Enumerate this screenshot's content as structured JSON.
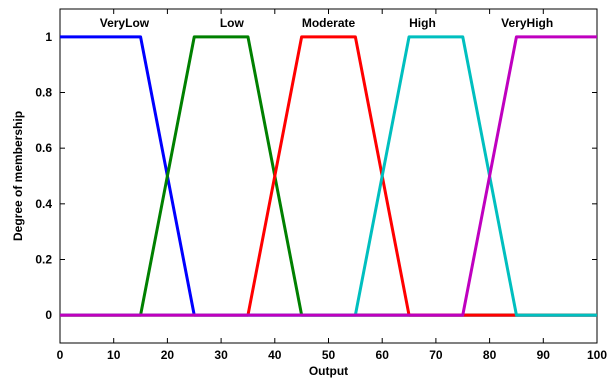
{
  "chart_data": {
    "type": "line",
    "title": "",
    "xlabel": "Output",
    "ylabel": "Degree of membership",
    "xlim": [
      0,
      100
    ],
    "ylim": [
      -0.1,
      1.1
    ],
    "xticks": [
      0,
      10,
      20,
      30,
      40,
      50,
      60,
      70,
      80,
      90,
      100
    ],
    "yticks": [
      0,
      0.2,
      0.4,
      0.6,
      0.8,
      1
    ],
    "ytick_labels": [
      "0",
      "0.2",
      "0.4",
      "0.6",
      "0.8",
      "1"
    ],
    "grid": false,
    "series": [
      {
        "name": "VeryLow",
        "color": "#0000ff",
        "x": [
          0,
          15,
          25,
          100
        ],
        "y": [
          1,
          1,
          0,
          0
        ]
      },
      {
        "name": "Low",
        "color": "#008000",
        "x": [
          0,
          15,
          25,
          35,
          45,
          100
        ],
        "y": [
          0,
          0,
          1,
          1,
          0,
          0
        ]
      },
      {
        "name": "Moderate",
        "color": "#ff0000",
        "x": [
          0,
          35,
          45,
          55,
          65,
          100
        ],
        "y": [
          0,
          0,
          1,
          1,
          0,
          0
        ]
      },
      {
        "name": "High",
        "color": "#00bfbf",
        "x": [
          0,
          55,
          65,
          75,
          85,
          100
        ],
        "y": [
          0,
          0,
          1,
          1,
          0,
          0
        ]
      },
      {
        "name": "VeryHigh",
        "color": "#bf00bf",
        "x": [
          0,
          75,
          85,
          100
        ],
        "y": [
          0,
          0,
          1,
          1
        ]
      }
    ],
    "series_label_x": [
      12,
      32,
      50,
      67.5,
      87
    ]
  }
}
